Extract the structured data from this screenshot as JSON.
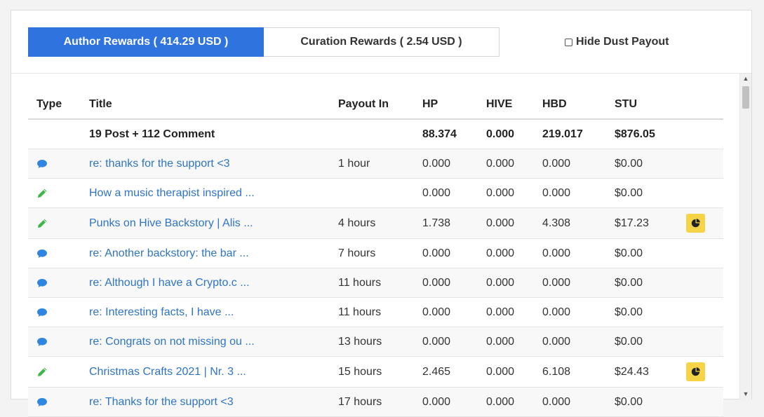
{
  "tabs": {
    "author": "Author Rewards ( 414.29 USD )",
    "curation": "Curation Rewards ( 2.54 USD )"
  },
  "hide_dust_label": "Hide Dust Payout",
  "colors": {
    "active_tab": "#2f74de",
    "link": "#2f74c4",
    "comment_icon": "#2f86e0",
    "post_icon": "#3fb54a",
    "pie_button": "#f5d547"
  },
  "table": {
    "headers": {
      "type": "Type",
      "title": "Title",
      "payout": "Payout In",
      "hp": "HP",
      "hive": "HIVE",
      "hbd": "HBD",
      "stu": "STU"
    },
    "summary": {
      "title": "19 Post + 112 Comment",
      "hp": "88.374",
      "hive": "0.000",
      "hbd": "219.017",
      "stu": "$876.05"
    },
    "rows": [
      {
        "icon": "comment-icon",
        "title": "re: thanks for the support <3",
        "payout": "1 hour",
        "hp": "0.000",
        "hive": "0.000",
        "hbd": "0.000",
        "stu": "$0.00",
        "pie": false
      },
      {
        "icon": "pencil-icon",
        "title": "How a music therapist inspired ...",
        "payout": "",
        "hp": "0.000",
        "hive": "0.000",
        "hbd": "0.000",
        "stu": "$0.00",
        "pie": false
      },
      {
        "icon": "pencil-icon",
        "title": "Punks on Hive Backstory | Alis ...",
        "payout": "4 hours",
        "hp": "1.738",
        "hive": "0.000",
        "hbd": "4.308",
        "stu": "$17.23",
        "pie": true
      },
      {
        "icon": "comment-icon",
        "title": "re: Another backstory: the bar ...",
        "payout": "7 hours",
        "hp": "0.000",
        "hive": "0.000",
        "hbd": "0.000",
        "stu": "$0.00",
        "pie": false
      },
      {
        "icon": "comment-icon",
        "title": "re: Although I have a Crypto.c ...",
        "payout": "11 hours",
        "hp": "0.000",
        "hive": "0.000",
        "hbd": "0.000",
        "stu": "$0.00",
        "pie": false
      },
      {
        "icon": "comment-icon",
        "title": "re: Interesting facts, I have ...",
        "payout": "11 hours",
        "hp": "0.000",
        "hive": "0.000",
        "hbd": "0.000",
        "stu": "$0.00",
        "pie": false
      },
      {
        "icon": "comment-icon",
        "title": "re: Congrats on not missing ou ...",
        "payout": "13 hours",
        "hp": "0.000",
        "hive": "0.000",
        "hbd": "0.000",
        "stu": "$0.00",
        "pie": false
      },
      {
        "icon": "pencil-icon",
        "title": "Christmas Crafts 2021 | Nr. 3 ...",
        "payout": "15 hours",
        "hp": "2.465",
        "hive": "0.000",
        "hbd": "6.108",
        "stu": "$24.43",
        "pie": true
      },
      {
        "icon": "comment-icon",
        "title": "re: Thanks for the support <3",
        "payout": "17 hours",
        "hp": "0.000",
        "hive": "0.000",
        "hbd": "0.000",
        "stu": "$0.00",
        "pie": false
      }
    ]
  }
}
